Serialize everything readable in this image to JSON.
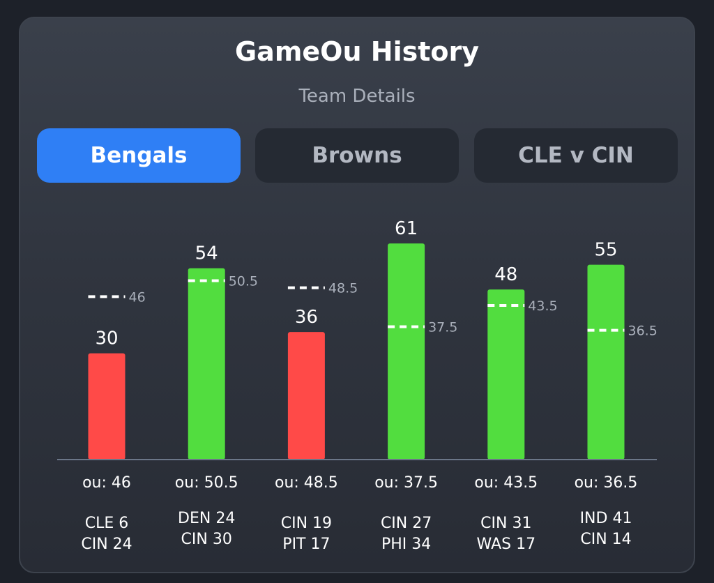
{
  "card": {
    "title": "GameOu History",
    "subtitle": "Team Details"
  },
  "tabs": [
    {
      "label": "Bengals",
      "active": true
    },
    {
      "label": "Browns",
      "active": false
    },
    {
      "label": "CLE v CIN",
      "active": false
    }
  ],
  "colors": {
    "over": "#52dd3f",
    "under": "#ff4a48",
    "tab_active": "#2f7ff5",
    "line_marker": "#ffffff"
  },
  "chart_data": {
    "type": "bar",
    "categories": [
      [
        "CLE 6",
        "CIN 24"
      ],
      [
        "DEN 24",
        "CIN 30"
      ],
      [
        "CIN 19",
        "PIT 17"
      ],
      [
        "CIN 27",
        "PHI 34"
      ],
      [
        "CIN 31",
        "WAS 17"
      ],
      [
        "IND 41",
        "CIN 14"
      ]
    ],
    "values": [
      30,
      54,
      36,
      61,
      48,
      55
    ],
    "value_labels": [
      "30",
      "54",
      "36",
      "61",
      "48",
      "55"
    ],
    "ou_lines": [
      46,
      50.5,
      48.5,
      37.5,
      43.5,
      36.5
    ],
    "ou_marker_labels": [
      "46",
      "50.5",
      "48.5",
      "37.5",
      "43.5",
      "36.5"
    ],
    "ou_labels": [
      "ou: 46",
      "ou: 50.5",
      "ou: 48.5",
      "ou: 37.5",
      "ou: 43.5",
      "ou: 36.5"
    ],
    "results": [
      "under",
      "over",
      "under",
      "over",
      "over",
      "over"
    ],
    "ylim": [
      0,
      61
    ],
    "grid": false
  }
}
